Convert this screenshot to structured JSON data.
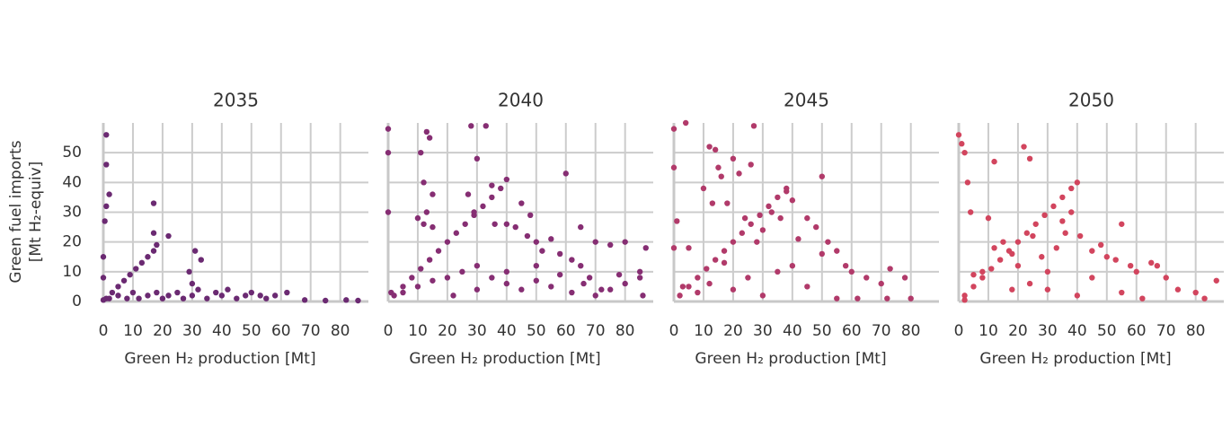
{
  "chart_data": [
    {
      "type": "scatter",
      "title": "2035",
      "xlabel": "Green H₂ production [Mt]",
      "ylabel": [
        "Green fuel imports",
        "[Mt H₂-equiv]"
      ],
      "color": "#6b2a72",
      "xlim": [
        0,
        89.5
      ],
      "ylim": [
        0,
        60
      ],
      "xticks": [
        0,
        10,
        20,
        30,
        40,
        50,
        60,
        70,
        80
      ],
      "yticks": [
        0,
        10,
        20,
        30,
        40,
        50
      ],
      "grid": true,
      "x": [
        1,
        3,
        5,
        7,
        9,
        11,
        13,
        15,
        17,
        18,
        2,
        5,
        8,
        10,
        12,
        15,
        18,
        20,
        22,
        25,
        27,
        30,
        32,
        35,
        38,
        40,
        42,
        45,
        48,
        50,
        53,
        55,
        58,
        62,
        68,
        75,
        82,
        86,
        1,
        1,
        2,
        1,
        0.5,
        17,
        17,
        22,
        29,
        31,
        33,
        30,
        0,
        0,
        0
      ],
      "values": [
        1,
        3,
        5,
        7,
        9,
        11,
        13,
        15,
        17,
        19,
        1,
        2,
        1,
        3,
        1,
        2,
        3,
        1,
        2,
        3,
        1,
        2,
        4,
        1,
        3,
        2,
        4,
        1,
        2,
        3,
        2,
        1,
        2,
        3,
        0.5,
        0.3,
        0.5,
        0.3,
        56,
        46,
        36,
        32,
        27,
        33,
        23,
        22,
        10,
        17,
        14,
        6,
        0.5,
        15,
        8
      ]
    },
    {
      "type": "scatter",
      "title": "2040",
      "xlabel": "Green H₂ production [Mt]",
      "color": "#862e73",
      "xlim": [
        0,
        89.5
      ],
      "ylim": [
        0,
        60
      ],
      "xticks": [
        0,
        10,
        20,
        30,
        40,
        50,
        60,
        70,
        80
      ],
      "yticks": [
        0,
        10,
        20,
        30,
        40,
        50
      ],
      "grid": true,
      "x": [
        2,
        5,
        8,
        11,
        14,
        17,
        20,
        23,
        26,
        29,
        32,
        35,
        38,
        40,
        13,
        14,
        11,
        12,
        15,
        13,
        12,
        10,
        15,
        28,
        33,
        30,
        27,
        29,
        35,
        36,
        40,
        45,
        43,
        47,
        52,
        48,
        50,
        55,
        58,
        62,
        65,
        70,
        75,
        80,
        87,
        85,
        60,
        65,
        68,
        72,
        80,
        86,
        85,
        78,
        5,
        10,
        15,
        20,
        25,
        30,
        35,
        40,
        45,
        50,
        55,
        58,
        62,
        66,
        70,
        75,
        30,
        22,
        40,
        50,
        0,
        0,
        0,
        1
      ],
      "values": [
        2,
        5,
        8,
        11,
        14,
        17,
        20,
        23,
        26,
        29,
        32,
        35,
        38,
        41,
        57,
        55,
        50,
        40,
        36,
        30,
        26,
        28,
        25,
        59,
        59,
        48,
        36,
        30,
        39,
        26,
        26,
        33,
        25,
        22,
        17,
        29,
        20,
        21,
        16,
        14,
        25,
        20,
        19,
        20,
        18,
        10,
        43,
        12,
        8,
        4,
        6,
        2,
        8,
        9,
        3,
        5,
        7,
        8,
        10,
        12,
        8,
        6,
        4,
        7,
        5,
        9,
        3,
        6,
        2,
        4,
        4,
        2,
        10,
        12,
        58,
        50,
        30,
        3
      ]
    },
    {
      "type": "scatter",
      "title": "2045",
      "xlabel": "Green H₂ production [Mt]",
      "color": "#b13a6a",
      "xlim": [
        0,
        89.5
      ],
      "ylim": [
        0,
        60
      ],
      "xticks": [
        0,
        10,
        20,
        30,
        40,
        50,
        60,
        70,
        80
      ],
      "yticks": [
        0,
        10,
        20,
        30,
        40,
        50
      ],
      "grid": true,
      "x": [
        2,
        5,
        8,
        11,
        14,
        17,
        20,
        23,
        26,
        29,
        32,
        35,
        38,
        4,
        27,
        12,
        14,
        15,
        20,
        26,
        16,
        22,
        10,
        13,
        18,
        24,
        28,
        30,
        33,
        36,
        38,
        40,
        45,
        48,
        42,
        50,
        52,
        55,
        58,
        60,
        65,
        70,
        73,
        78,
        50,
        17,
        25,
        35,
        45,
        55,
        62,
        72,
        80,
        5,
        1,
        3,
        8,
        12,
        20,
        30,
        40,
        0,
        0,
        0
      ],
      "values": [
        2,
        5,
        8,
        11,
        14,
        17,
        20,
        23,
        26,
        29,
        32,
        35,
        38,
        60,
        59,
        52,
        51,
        45,
        48,
        46,
        42,
        43,
        38,
        33,
        33,
        28,
        20,
        24,
        30,
        28,
        37,
        34,
        28,
        25,
        21,
        16,
        20,
        17,
        12,
        10,
        8,
        6,
        11,
        8,
        42,
        13,
        8,
        10,
        5,
        1,
        1,
        1,
        1,
        18,
        27,
        5,
        3,
        6,
        4,
        2,
        12,
        58,
        45,
        18
      ]
    },
    {
      "type": "scatter",
      "title": "2050",
      "xlabel": "Green H₂ production [Mt]",
      "color": "#d2455e",
      "xlim": [
        0,
        89.5
      ],
      "ylim": [
        0,
        60
      ],
      "xticks": [
        0,
        10,
        20,
        30,
        40,
        50,
        60,
        70,
        80
      ],
      "yticks": [
        0,
        10,
        20,
        30,
        40,
        50
      ],
      "grid": true,
      "x": [
        2,
        5,
        8,
        11,
        14,
        17,
        20,
        23,
        26,
        29,
        32,
        35,
        38,
        40,
        0,
        1,
        2,
        22,
        24,
        12,
        3,
        4,
        10,
        8,
        5,
        12,
        15,
        18,
        20,
        25,
        28,
        30,
        33,
        35,
        36,
        38,
        41,
        45,
        48,
        50,
        53,
        55,
        58,
        60,
        65,
        67,
        70,
        74,
        80,
        87,
        83,
        45,
        55,
        62,
        18,
        24,
        30,
        40,
        2
      ],
      "values": [
        2,
        5,
        8,
        11,
        14,
        17,
        20,
        23,
        26,
        29,
        32,
        35,
        38,
        40,
        56,
        53,
        50,
        52,
        48,
        47,
        40,
        30,
        28,
        10,
        9,
        18,
        20,
        16,
        12,
        22,
        15,
        10,
        18,
        27,
        23,
        30,
        22,
        17,
        19,
        15,
        14,
        26,
        12,
        10,
        13,
        12,
        8,
        4,
        3,
        7,
        1,
        8,
        3,
        1,
        4,
        6,
        4,
        2,
        0.5
      ]
    }
  ]
}
